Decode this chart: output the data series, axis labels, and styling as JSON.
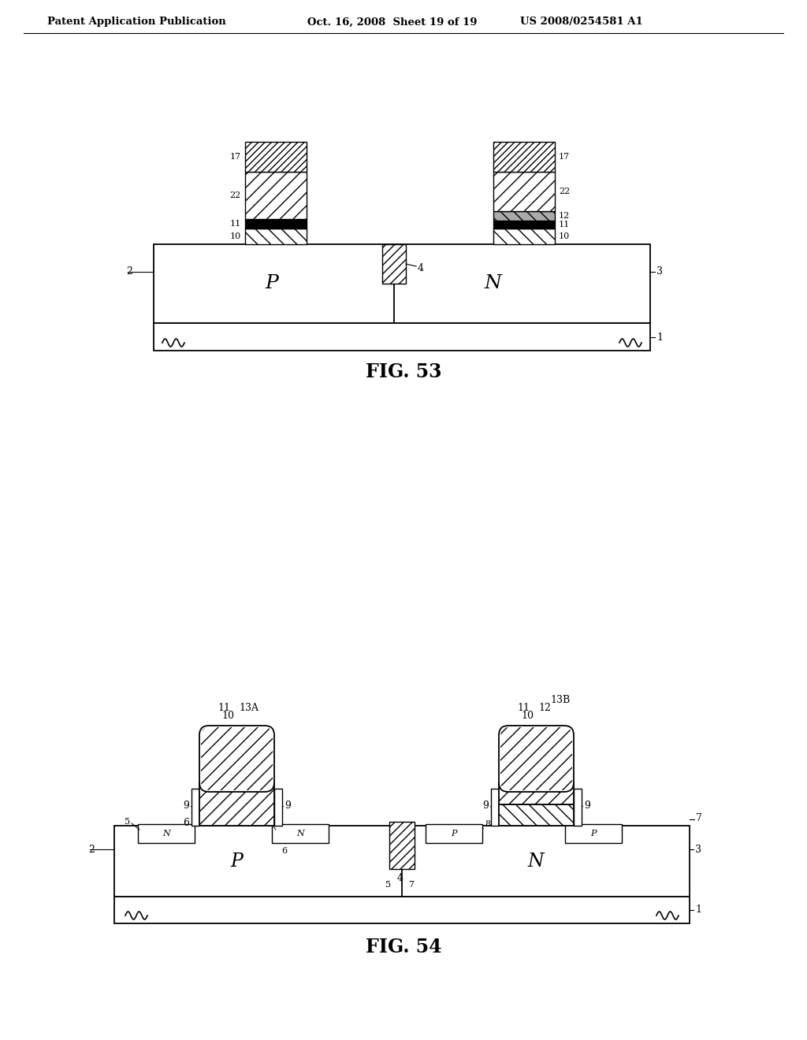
{
  "bg_color": "#ffffff",
  "header_left": "Patent Application Publication",
  "header_mid": "Oct. 16, 2008  Sheet 19 of 19",
  "header_right": "US 2008/0254581 A1",
  "fig53_label": "FIG. 53",
  "fig54_label": "FIG. 54"
}
